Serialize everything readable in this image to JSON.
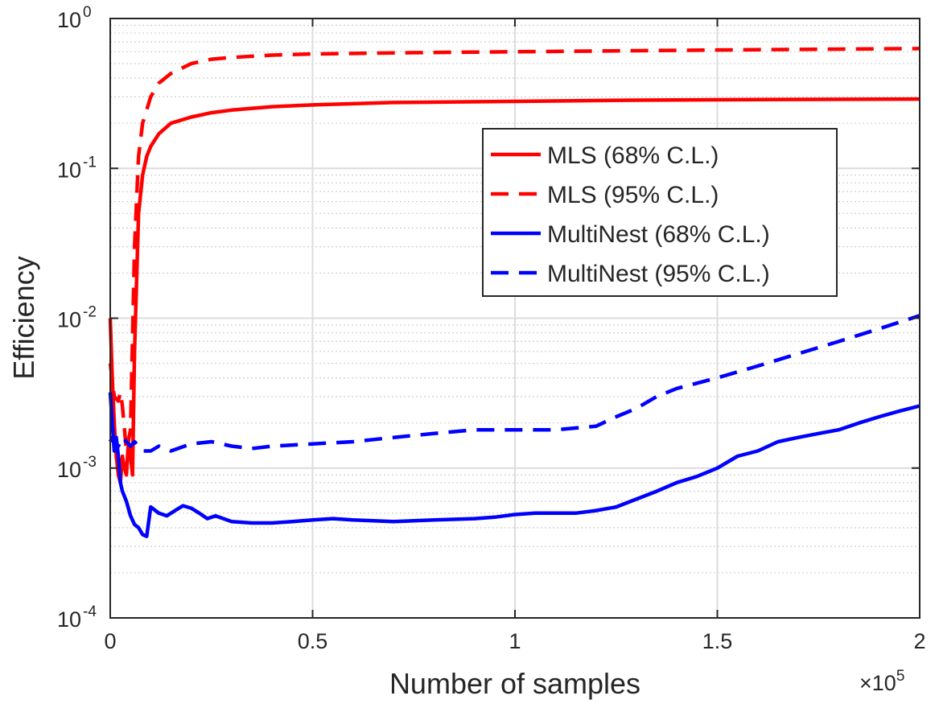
{
  "chart_data": {
    "type": "line",
    "title": "",
    "xlabel": "Number of samples",
    "ylabel": "Efficiency",
    "x_exponent_label": "×10",
    "x_exponent_power": "5",
    "xlim": [
      0,
      2
    ],
    "ylim": [
      0.0001,
      1
    ],
    "yscale": "log",
    "grid": true,
    "legend_position": "top-right",
    "x_ticks": [
      {
        "value": 0,
        "label": "0"
      },
      {
        "value": 0.5,
        "label": "0.5"
      },
      {
        "value": 1,
        "label": "1"
      },
      {
        "value": 1.5,
        "label": "1.5"
      },
      {
        "value": 2,
        "label": "2"
      }
    ],
    "y_ticks": [
      {
        "value": 0.0001,
        "base": "10",
        "exp": "-4"
      },
      {
        "value": 0.001,
        "base": "10",
        "exp": "-3"
      },
      {
        "value": 0.01,
        "base": "10",
        "exp": "-2"
      },
      {
        "value": 0.1,
        "base": "10",
        "exp": "-1"
      },
      {
        "value": 1,
        "base": "10",
        "exp": "0"
      }
    ],
    "series": [
      {
        "name": "MLS (68% C.L.)",
        "color": "#ff0000",
        "dash": "solid",
        "x": [
          0.0,
          0.005,
          0.01,
          0.015,
          0.02,
          0.025,
          0.03,
          0.035,
          0.04,
          0.045,
          0.05,
          0.055,
          0.06,
          0.07,
          0.08,
          0.09,
          0.1,
          0.12,
          0.15,
          0.2,
          0.25,
          0.3,
          0.4,
          0.5,
          0.7,
          1.0,
          1.3,
          1.6,
          2.0
        ],
        "y": [
          0.01,
          0.004,
          0.002,
          0.0012,
          0.0009,
          0.0008,
          0.0012,
          0.001,
          0.0009,
          0.0015,
          0.0012,
          0.0009,
          0.006,
          0.05,
          0.09,
          0.12,
          0.14,
          0.17,
          0.2,
          0.22,
          0.235,
          0.245,
          0.258,
          0.265,
          0.275,
          0.28,
          0.285,
          0.288,
          0.29
        ]
      },
      {
        "name": "MLS (95% C.L.)",
        "color": "#ff0000",
        "dash": "dashed",
        "x": [
          0.0,
          0.01,
          0.02,
          0.025,
          0.03,
          0.04,
          0.05,
          0.06,
          0.07,
          0.08,
          0.1,
          0.12,
          0.15,
          0.2,
          0.25,
          0.3,
          0.4,
          0.5,
          0.7,
          1.0,
          1.3,
          1.6,
          2.0
        ],
        "y": [
          0.005,
          0.003,
          0.0028,
          0.0032,
          0.0026,
          0.0013,
          0.0018,
          0.03,
          0.12,
          0.2,
          0.3,
          0.37,
          0.43,
          0.5,
          0.535,
          0.55,
          0.57,
          0.58,
          0.59,
          0.6,
          0.61,
          0.62,
          0.63
        ]
      },
      {
        "name": "MultiNest (68% C.L.)",
        "color": "#0000ff",
        "dash": "solid",
        "x": [
          0.0,
          0.005,
          0.01,
          0.015,
          0.02,
          0.025,
          0.03,
          0.04,
          0.05,
          0.06,
          0.07,
          0.08,
          0.09,
          0.1,
          0.12,
          0.14,
          0.16,
          0.18,
          0.2,
          0.22,
          0.24,
          0.26,
          0.3,
          0.35,
          0.4,
          0.45,
          0.5,
          0.55,
          0.6,
          0.7,
          0.8,
          0.9,
          0.95,
          1.0,
          1.05,
          1.1,
          1.15,
          1.2,
          1.25,
          1.3,
          1.35,
          1.4,
          1.45,
          1.5,
          1.55,
          1.6,
          1.65,
          1.7,
          1.75,
          1.8,
          1.85,
          1.9,
          1.95,
          2.0
        ],
        "y": [
          0.0032,
          0.002,
          0.0013,
          0.0016,
          0.0012,
          0.0008,
          0.0007,
          0.0006,
          0.00048,
          0.00042,
          0.0004,
          0.00036,
          0.00035,
          0.00055,
          0.0005,
          0.00048,
          0.00052,
          0.00056,
          0.00054,
          0.0005,
          0.00046,
          0.00048,
          0.00044,
          0.00043,
          0.00043,
          0.00044,
          0.00045,
          0.00046,
          0.00045,
          0.00044,
          0.00045,
          0.00046,
          0.00047,
          0.00049,
          0.0005,
          0.0005,
          0.0005,
          0.00052,
          0.00055,
          0.00062,
          0.0007,
          0.0008,
          0.00088,
          0.001,
          0.0012,
          0.0013,
          0.0015,
          0.0016,
          0.0017,
          0.0018,
          0.002,
          0.0022,
          0.0024,
          0.0026
        ]
      },
      {
        "name": "MultiNest (95% C.L.)",
        "color": "#0000ff",
        "dash": "dashed",
        "x": [
          0.0,
          0.005,
          0.01,
          0.02,
          0.03,
          0.04,
          0.05,
          0.06,
          0.08,
          0.1,
          0.12,
          0.15,
          0.2,
          0.25,
          0.3,
          0.35,
          0.4,
          0.5,
          0.6,
          0.7,
          0.8,
          0.9,
          1.0,
          1.1,
          1.2,
          1.25,
          1.3,
          1.35,
          1.4,
          1.5,
          1.6,
          1.7,
          1.8,
          1.9,
          2.0
        ],
        "y": [
          0.0015,
          0.0016,
          0.0015,
          0.0014,
          0.0016,
          0.0015,
          0.0014,
          0.0015,
          0.0013,
          0.0013,
          0.0014,
          0.0013,
          0.00145,
          0.0015,
          0.0014,
          0.00135,
          0.0014,
          0.00145,
          0.0015,
          0.0016,
          0.0017,
          0.0018,
          0.0018,
          0.0018,
          0.0019,
          0.0022,
          0.0025,
          0.003,
          0.0034,
          0.004,
          0.0048,
          0.0058,
          0.007,
          0.0085,
          0.0104
        ]
      }
    ]
  }
}
